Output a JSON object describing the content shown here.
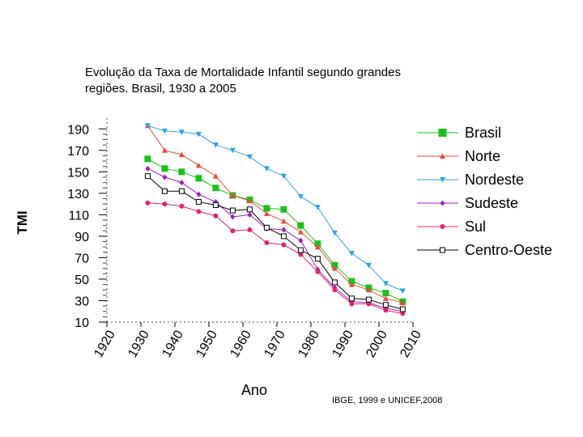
{
  "title": {
    "line1": "Evolução da Taxa  de Mortalidade Infantil segundo grandes",
    "line2": "regiões. Brasil, 1930 a 2005"
  },
  "source": "IBGE, 1999 e UNICEF,2008",
  "chart_data": {
    "type": "line",
    "title": "Evolução da Taxa  de Mortalidade Infantil segundo grandes regiões. Brasil, 1930 a 2005",
    "xlabel": "Ano",
    "ylabel": "TMI",
    "xlim": [
      1920,
      2010
    ],
    "ylim": [
      10,
      200
    ],
    "xticks": [
      1920,
      1930,
      1940,
      1950,
      1960,
      1970,
      1980,
      1990,
      2000,
      2010
    ],
    "yticks": [
      10,
      30,
      50,
      70,
      90,
      110,
      130,
      150,
      170,
      190
    ],
    "legend_position": "right",
    "series": [
      {
        "name": "Brasil",
        "color": "#19c219",
        "marker": "square",
        "x": [
          1932,
          1937,
          1942,
          1947,
          1952,
          1957,
          1962,
          1967,
          1972,
          1977,
          1982,
          1987,
          1992,
          1997,
          2002,
          2007
        ],
        "y": [
          162,
          153,
          150,
          144,
          135,
          128,
          124,
          116,
          115,
          100,
          83,
          63,
          48,
          42,
          37,
          29
        ]
      },
      {
        "name": "Norte",
        "color": "#e84a3c",
        "marker": "triangle-up",
        "x": [
          1932,
          1937,
          1942,
          1947,
          1952,
          1957,
          1962,
          1967,
          1972,
          1977,
          1982,
          1987,
          1992,
          1997,
          2002,
          2007
        ],
        "y": [
          193,
          170,
          166,
          156,
          146,
          128,
          123,
          111,
          104,
          94,
          80,
          60,
          45,
          40,
          32,
          28
        ]
      },
      {
        "name": "Nordeste",
        "color": "#2ea3d8",
        "marker": "triangle-down",
        "x": [
          1932,
          1937,
          1942,
          1947,
          1952,
          1957,
          1962,
          1967,
          1972,
          1977,
          1982,
          1987,
          1992,
          1997,
          2002,
          2007
        ],
        "y": [
          193,
          188,
          187,
          185,
          175,
          170,
          164,
          153,
          146,
          127,
          117,
          93,
          74,
          63,
          46,
          39
        ]
      },
      {
        "name": "Sudeste",
        "color": "#9b1fb8",
        "marker": "diamond",
        "x": [
          1932,
          1937,
          1942,
          1947,
          1952,
          1957,
          1962,
          1967,
          1972,
          1977,
          1982,
          1987,
          1992,
          1997,
          2002,
          2007
        ],
        "y": [
          153,
          145,
          140,
          129,
          122,
          108,
          110,
          97,
          96,
          86,
          59,
          42,
          29,
          28,
          23,
          20
        ]
      },
      {
        "name": "Sul",
        "color": "#e0246e",
        "marker": "circle",
        "x": [
          1932,
          1937,
          1942,
          1947,
          1952,
          1957,
          1962,
          1967,
          1972,
          1977,
          1982,
          1987,
          1992,
          1997,
          2002,
          2007
        ],
        "y": [
          121,
          120,
          118,
          113,
          109,
          95,
          96,
          84,
          82,
          73,
          57,
          40,
          27,
          27,
          21,
          18
        ]
      },
      {
        "name": "Centro-Oeste",
        "color": "#000000",
        "marker": "open-square",
        "x": [
          1932,
          1937,
          1942,
          1947,
          1952,
          1957,
          1962,
          1967,
          1972,
          1977,
          1982,
          1987,
          1992,
          1997,
          2002,
          2007
        ],
        "y": [
          146,
          132,
          132,
          122,
          119,
          114,
          115,
          98,
          90,
          77,
          69,
          47,
          32,
          31,
          26,
          22
        ]
      }
    ]
  }
}
